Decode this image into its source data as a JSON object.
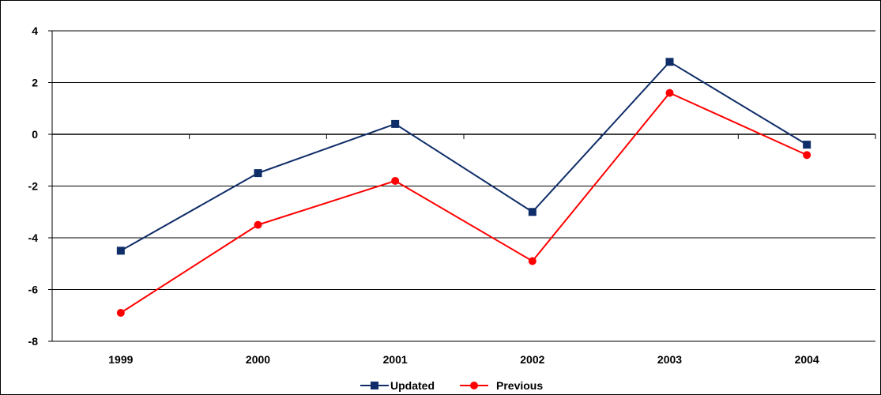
{
  "chart_data": {
    "type": "line",
    "categories": [
      "1999",
      "2000",
      "2001",
      "2002",
      "2003",
      "2004"
    ],
    "series": [
      {
        "name": "Updated",
        "values": [
          -4.5,
          -1.5,
          0.4,
          -3.0,
          2.8,
          -0.4
        ],
        "color": "#0f2d69",
        "marker": "square"
      },
      {
        "name": "Previous",
        "values": [
          -6.9,
          -3.5,
          -1.8,
          -4.9,
          1.6,
          -0.8
        ],
        "color": "#ff0000",
        "marker": "circle"
      }
    ],
    "ylim": [
      -8,
      4
    ],
    "yticks": [
      "-8",
      "-6",
      "-4",
      "-2",
      "0",
      "2",
      "4"
    ],
    "grid": true,
    "legend_position": "bottom"
  }
}
